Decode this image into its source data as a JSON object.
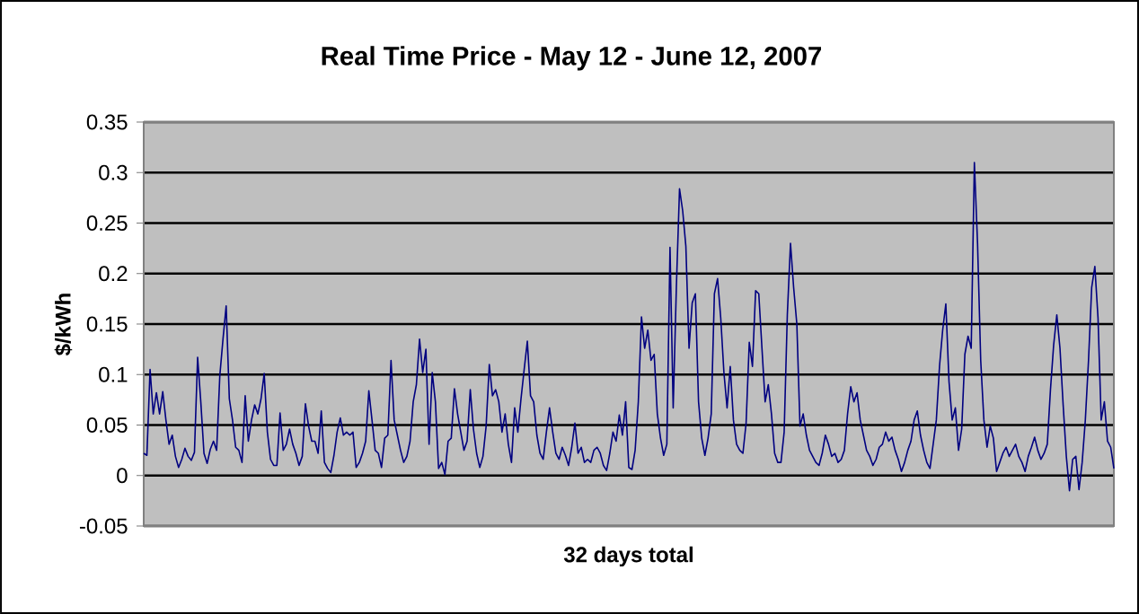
{
  "chart_data": {
    "type": "line",
    "title": "Real Time Price - May 12 - June 12, 2007",
    "xlabel": "32 days total",
    "ylabel": "$/kWh",
    "color": "#000080",
    "grid": "y",
    "line_style": "solid",
    "marker": "none",
    "ylim": [
      -0.05,
      0.35
    ],
    "yticks": [
      -0.05,
      0,
      0.05,
      0.1,
      0.15,
      0.2,
      0.25,
      0.3,
      0.35
    ],
    "values": [
      0.022,
      0.02,
      0.105,
      0.061,
      0.082,
      0.061,
      0.083,
      0.055,
      0.031,
      0.04,
      0.019,
      0.008,
      0.016,
      0.027,
      0.019,
      0.015,
      0.023,
      0.117,
      0.073,
      0.022,
      0.012,
      0.026,
      0.034,
      0.025,
      0.099,
      0.135,
      0.168,
      0.076,
      0.055,
      0.028,
      0.025,
      0.013,
      0.079,
      0.034,
      0.055,
      0.07,
      0.061,
      0.076,
      0.101,
      0.043,
      0.016,
      0.01,
      0.01,
      0.062,
      0.025,
      0.031,
      0.046,
      0.031,
      0.022,
      0.01,
      0.019,
      0.071,
      0.049,
      0.034,
      0.034,
      0.022,
      0.064,
      0.013,
      0.007,
      0.003,
      0.02,
      0.043,
      0.057,
      0.04,
      0.043,
      0.04,
      0.043,
      0.008,
      0.013,
      0.022,
      0.034,
      0.084,
      0.055,
      0.025,
      0.022,
      0.008,
      0.037,
      0.04,
      0.114,
      0.055,
      0.04,
      0.025,
      0.013,
      0.019,
      0.034,
      0.073,
      0.09,
      0.135,
      0.102,
      0.125,
      0.031,
      0.102,
      0.073,
      0.007,
      0.013,
      0.001,
      0.034,
      0.037,
      0.086,
      0.061,
      0.043,
      0.025,
      0.034,
      0.085,
      0.046,
      0.022,
      0.008,
      0.019,
      0.049,
      0.11,
      0.079,
      0.085,
      0.073,
      0.043,
      0.061,
      0.031,
      0.013,
      0.067,
      0.043,
      0.076,
      0.105,
      0.133,
      0.079,
      0.073,
      0.04,
      0.022,
      0.016,
      0.043,
      0.067,
      0.043,
      0.022,
      0.016,
      0.028,
      0.02,
      0.01,
      0.028,
      0.052,
      0.022,
      0.028,
      0.013,
      0.016,
      0.013,
      0.025,
      0.028,
      0.022,
      0.01,
      0.005,
      0.022,
      0.043,
      0.034,
      0.06,
      0.04,
      0.073,
      0.008,
      0.006,
      0.025,
      0.073,
      0.157,
      0.126,
      0.144,
      0.114,
      0.12,
      0.061,
      0.037,
      0.02,
      0.031,
      0.226,
      0.067,
      0.186,
      0.284,
      0.262,
      0.227,
      0.126,
      0.171,
      0.18,
      0.073,
      0.037,
      0.02,
      0.037,
      0.061,
      0.18,
      0.195,
      0.156,
      0.102,
      0.067,
      0.108,
      0.055,
      0.031,
      0.025,
      0.022,
      0.052,
      0.132,
      0.108,
      0.183,
      0.18,
      0.126,
      0.073,
      0.09,
      0.061,
      0.022,
      0.013,
      0.013,
      0.043,
      0.159,
      0.23,
      0.186,
      0.15,
      0.049,
      0.061,
      0.04,
      0.025,
      0.019,
      0.013,
      0.01,
      0.022,
      0.04,
      0.031,
      0.019,
      0.022,
      0.013,
      0.016,
      0.025,
      0.061,
      0.088,
      0.073,
      0.082,
      0.055,
      0.04,
      0.025,
      0.019,
      0.01,
      0.016,
      0.028,
      0.031,
      0.043,
      0.034,
      0.038,
      0.025,
      0.016,
      0.004,
      0.013,
      0.025,
      0.034,
      0.055,
      0.064,
      0.04,
      0.025,
      0.013,
      0.007,
      0.031,
      0.055,
      0.108,
      0.144,
      0.17,
      0.093,
      0.055,
      0.067,
      0.025,
      0.046,
      0.12,
      0.138,
      0.126,
      0.31,
      0.23,
      0.114,
      0.055,
      0.028,
      0.049,
      0.037,
      0.004,
      0.013,
      0.022,
      0.028,
      0.019,
      0.025,
      0.031,
      0.019,
      0.013,
      0.004,
      0.019,
      0.028,
      0.038,
      0.025,
      0.016,
      0.022,
      0.031,
      0.085,
      0.129,
      0.159,
      0.126,
      0.07,
      0.019,
      -0.015,
      0.016,
      0.019,
      -0.014,
      0.013,
      0.055,
      0.114,
      0.186,
      0.207,
      0.156,
      0.055,
      0.073,
      0.034,
      0.028,
      0.007
    ],
    "categories": [
      null,
      null,
      null,
      null,
      null,
      null,
      null,
      null,
      null,
      null,
      null,
      null,
      null,
      null,
      null,
      null,
      null,
      null,
      null,
      null,
      null,
      null,
      null,
      null,
      null,
      null,
      null,
      null,
      null,
      null,
      null,
      null,
      null,
      null,
      null,
      null,
      null,
      null,
      null,
      null,
      null,
      null,
      null,
      null,
      null,
      null,
      null,
      null,
      null,
      null,
      null,
      null,
      null,
      null,
      null,
      null,
      null,
      null,
      null,
      null,
      null,
      null,
      null,
      null,
      null,
      null,
      null,
      null,
      null,
      null,
      null,
      null,
      null,
      null,
      null,
      null,
      null,
      null,
      null,
      null,
      null,
      null,
      null,
      null,
      null,
      null,
      null,
      null,
      null,
      null,
      null,
      null,
      null,
      null,
      null,
      null,
      null,
      null,
      null,
      null,
      null,
      null,
      null,
      null,
      null,
      null,
      null,
      null,
      null,
      null,
      null,
      null,
      null,
      null,
      null,
      null,
      null,
      null,
      null,
      null,
      null,
      null,
      null,
      null,
      null,
      null,
      null,
      null,
      null,
      null,
      null,
      null,
      null,
      null,
      null,
      null,
      null,
      null,
      null,
      null,
      null,
      null,
      null,
      null,
      null,
      null,
      null,
      null,
      null,
      null,
      null,
      null,
      null,
      null,
      null,
      null,
      null,
      null,
      null,
      null,
      null,
      null,
      null,
      null,
      null,
      null,
      null,
      null,
      null,
      null,
      null,
      null,
      null,
      null,
      null,
      null,
      null,
      null,
      null,
      null,
      null,
      null,
      null,
      null,
      null,
      null,
      null,
      null,
      null,
      null,
      null,
      null,
      null,
      null,
      null,
      null,
      null,
      null,
      null,
      null,
      null,
      null,
      null,
      null,
      null,
      null,
      null,
      null,
      null,
      null,
      null,
      null,
      null,
      null,
      null,
      null,
      null,
      null,
      null,
      null,
      null,
      null,
      null,
      null,
      null,
      null,
      null,
      null,
      null,
      null,
      null,
      null,
      null,
      null,
      null,
      null,
      null,
      null,
      null,
      null,
      null,
      null,
      null,
      null,
      null,
      null,
      null,
      null,
      null,
      null,
      null,
      null,
      null,
      null,
      null,
      null,
      null,
      null,
      null,
      null,
      null,
      null,
      null,
      null,
      null,
      null,
      null,
      null,
      null,
      null,
      null,
      null,
      null,
      null,
      null,
      null,
      null,
      null,
      null,
      null,
      null,
      null,
      null,
      null,
      null,
      null,
      null,
      null,
      null,
      null,
      null,
      null,
      null,
      null,
      null,
      null,
      null,
      null,
      null,
      null,
      null,
      null,
      null,
      null,
      null,
      null,
      null
    ]
  }
}
